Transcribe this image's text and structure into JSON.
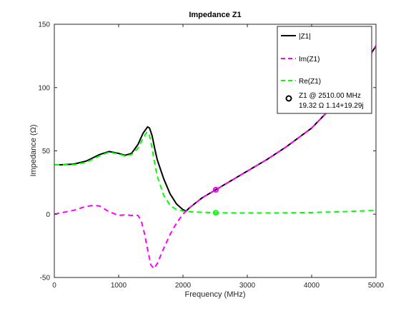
{
  "chart_data": {
    "type": "line",
    "title": "Impedance Z1",
    "xlabel": "Frequency (MHz)",
    "ylabel": "Impedance (Ω)",
    "xlim": [
      0,
      5000
    ],
    "ylim": [
      -50,
      150
    ],
    "x_ticks": [
      "0",
      "1000",
      "2000",
      "3000",
      "4000",
      "5000"
    ],
    "y_ticks": [
      "-50",
      "0",
      "50",
      "100",
      "150"
    ],
    "grid": false,
    "legend_position": "top-right",
    "series": [
      {
        "name": "|Z1|",
        "color": "#000000",
        "style": "solid",
        "x": [
          0,
          100,
          300,
          500,
          700,
          850,
          1000,
          1100,
          1200,
          1300,
          1380,
          1450,
          1480,
          1520,
          1560,
          1600,
          1700,
          1800,
          1900,
          2000,
          2050,
          2100,
          2200,
          2300,
          2400,
          2510,
          2700,
          3000,
          3300,
          3600,
          4000,
          4400,
          4700,
          5000
        ],
        "y": [
          39,
          39,
          39.5,
          42,
          47,
          49.5,
          48,
          46.5,
          48,
          55,
          64,
          69,
          68,
          62,
          52,
          43,
          28,
          16,
          8,
          3.5,
          2.5,
          5,
          9,
          13,
          16,
          19.3,
          25,
          34,
          43,
          53,
          68,
          89,
          108,
          133
        ]
      },
      {
        "name": "Im(Z1)",
        "color": "#ff00ff",
        "style": "dashed",
        "x": [
          0,
          150,
          300,
          450,
          600,
          700,
          850,
          1000,
          1100,
          1200,
          1300,
          1350,
          1400,
          1450,
          1500,
          1550,
          1600,
          1700,
          1800,
          1900,
          2000,
          2050,
          2100,
          2200,
          2300,
          2400,
          2510,
          2700,
          3000,
          3300,
          3600,
          4000,
          4400,
          4700,
          5000
        ],
        "y": [
          0,
          1.5,
          3,
          5.5,
          7,
          6.5,
          2,
          -1,
          -0.5,
          -1,
          -1,
          -5,
          -15,
          -28,
          -40,
          -43,
          -39,
          -27,
          -16,
          -7,
          0,
          2.5,
          5,
          9,
          13,
          16,
          19.29,
          25,
          34,
          43,
          53,
          68,
          89,
          108,
          133
        ]
      },
      {
        "name": "Re(Z1)",
        "color": "#00ff00",
        "style": "dashed",
        "x": [
          0,
          100,
          300,
          500,
          700,
          850,
          1000,
          1100,
          1200,
          1300,
          1380,
          1440,
          1480,
          1520,
          1560,
          1600,
          1700,
          1800,
          1900,
          2000,
          2100,
          2200,
          2300,
          2510,
          2800,
          3000,
          3500,
          4000,
          4500,
          5000
        ],
        "y": [
          39,
          39,
          39,
          41,
          46,
          49,
          47.5,
          46,
          47,
          52,
          60,
          65,
          62,
          52,
          40,
          30,
          15,
          7,
          3.5,
          2.5,
          2,
          1.7,
          1.5,
          1.14,
          1,
          1,
          1,
          1.3,
          2,
          3
        ]
      }
    ],
    "marker": {
      "label_line1": "Z1 @ 2510.00 MHz",
      "label_line2": "19.32 Ω 1.14+19.29j",
      "x": 2510,
      "magnitude": 19.32,
      "real": 1.14,
      "imag": 19.29,
      "colors": {
        "magnitude": "#000000",
        "imag": "#ff00ff",
        "real": "#00ff00"
      }
    }
  }
}
